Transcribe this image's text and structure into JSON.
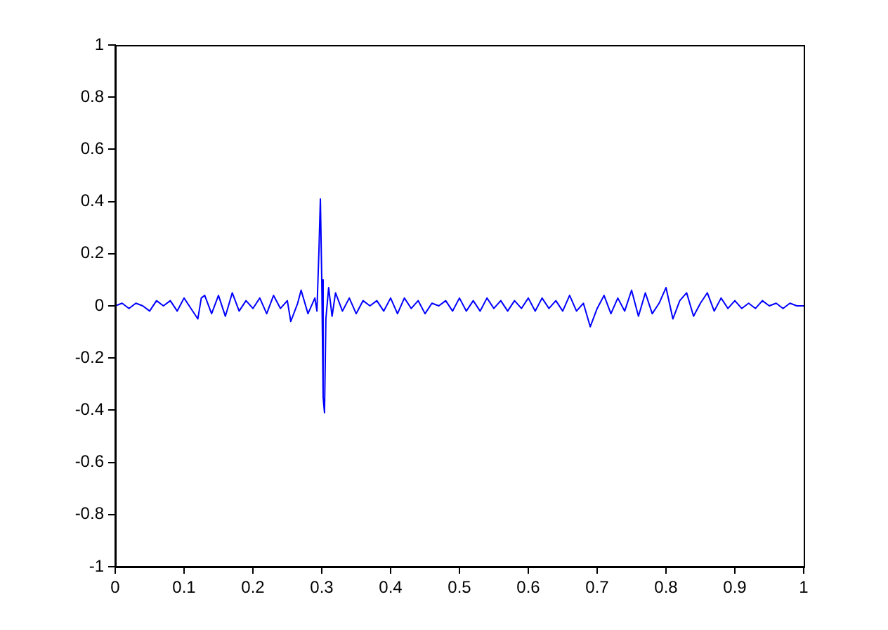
{
  "chart_data": {
    "type": "line",
    "x": [
      0,
      0.01,
      0.02,
      0.03,
      0.04,
      0.05,
      0.06,
      0.07,
      0.08,
      0.09,
      0.1,
      0.11,
      0.12,
      0.125,
      0.13,
      0.14,
      0.15,
      0.16,
      0.17,
      0.18,
      0.19,
      0.2,
      0.21,
      0.22,
      0.23,
      0.24,
      0.25,
      0.255,
      0.265,
      0.27,
      0.28,
      0.29,
      0.293,
      0.296,
      0.298,
      0.3,
      0.302,
      0.304,
      0.306,
      0.31,
      0.315,
      0.32,
      0.33,
      0.34,
      0.35,
      0.36,
      0.37,
      0.38,
      0.39,
      0.4,
      0.41,
      0.42,
      0.43,
      0.44,
      0.45,
      0.46,
      0.47,
      0.48,
      0.49,
      0.5,
      0.51,
      0.52,
      0.53,
      0.54,
      0.55,
      0.56,
      0.57,
      0.58,
      0.59,
      0.6,
      0.61,
      0.62,
      0.63,
      0.64,
      0.65,
      0.66,
      0.67,
      0.68,
      0.69,
      0.7,
      0.71,
      0.72,
      0.73,
      0.74,
      0.75,
      0.76,
      0.77,
      0.78,
      0.79,
      0.8,
      0.81,
      0.82,
      0.83,
      0.84,
      0.85,
      0.86,
      0.87,
      0.88,
      0.89,
      0.9,
      0.91,
      0.92,
      0.93,
      0.94,
      0.95,
      0.96,
      0.97,
      0.98,
      0.99,
      1
    ],
    "series": [
      {
        "color": "#0000ff",
        "values": [
          0,
          0.01,
          -0.01,
          0.01,
          0,
          -0.02,
          0.02,
          0,
          0.02,
          -0.02,
          0.03,
          -0.01,
          -0.05,
          0.03,
          0.04,
          -0.03,
          0.04,
          -0.04,
          0.05,
          -0.02,
          0.02,
          -0.01,
          0.03,
          -0.03,
          0.04,
          -0.01,
          0.02,
          -0.06,
          0.01,
          0.06,
          -0.03,
          0.03,
          -0.02,
          0.22,
          0.41,
          0.1,
          -0.35,
          -0.41,
          -0.05,
          0.07,
          -0.04,
          0.05,
          -0.02,
          0.03,
          -0.03,
          0.02,
          0,
          0.02,
          -0.02,
          0.03,
          -0.03,
          0.03,
          -0.01,
          0.02,
          -0.03,
          0.01,
          0,
          0.02,
          -0.02,
          0.03,
          -0.02,
          0.02,
          -0.02,
          0.03,
          -0.01,
          0.02,
          -0.02,
          0.02,
          -0.01,
          0.03,
          -0.02,
          0.03,
          -0.01,
          0.02,
          -0.02,
          0.04,
          -0.02,
          0.01,
          -0.08,
          -0.01,
          0.04,
          -0.03,
          0.03,
          -0.02,
          0.06,
          -0.04,
          0.05,
          -0.03,
          0.01,
          0.07,
          -0.05,
          0.02,
          0.05,
          -0.04,
          0.01,
          0.05,
          -0.02,
          0.03,
          -0.01,
          0.02,
          -0.01,
          0.01,
          -0.01,
          0.02,
          0,
          0.01,
          -0.01,
          0.01,
          0,
          0
        ]
      }
    ],
    "xlim": [
      0,
      1
    ],
    "xticks": [
      0,
      0.1,
      0.2,
      0.3,
      0.4,
      0.5,
      0.6,
      0.7,
      0.8,
      0.9,
      1
    ],
    "ylim": [
      -1,
      1
    ],
    "yticks": [
      -1,
      -0.8,
      -0.6,
      -0.4,
      -0.2,
      0,
      0.2,
      0.4,
      0.6,
      0.8,
      1
    ],
    "grid": false,
    "legend": false,
    "marker": "none",
    "line_style": "solid"
  }
}
